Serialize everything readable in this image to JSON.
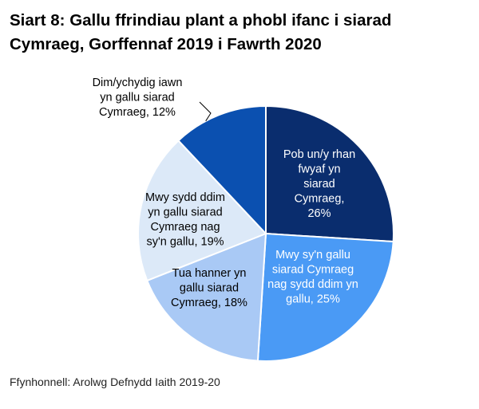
{
  "title_lines": [
    "Siart 8: Gallu ffrindiau plant a phobl ifanc i siarad",
    "Cymraeg, Gorffennaf 2019 i Fawrth 2020"
  ],
  "source": "Ffynhonnell: Arolwg Defnydd Iaith 2019-20",
  "chart_data": {
    "type": "pie",
    "title": "Siart 8: Gallu ffrindiau plant a phobl ifanc i siarad Cymraeg, Gorffennaf 2019 i Fawrth 2020",
    "slices": [
      {
        "name": "Pob un/y rhan fwyaf yn siarad Cymraeg",
        "value": 26,
        "color": "#0a2d6e",
        "label_lines": [
          "Pob un/y rhan",
          "fwyaf yn",
          "siarad",
          "Cymraeg,",
          "26%"
        ],
        "label_color": "#ffffff"
      },
      {
        "name": "Mwy sy'n gallu siarad Cymraeg nag sydd ddim yn gallu",
        "value": 25,
        "color": "#4a9af5",
        "label_lines": [
          "Mwy sy'n gallu",
          "siarad Cymraeg",
          "nag sydd ddim yn",
          "gallu, 25%"
        ],
        "label_color": "#ffffff"
      },
      {
        "name": "Tua hanner yn gallu siarad Cymraeg",
        "value": 18,
        "color": "#a9c9f5",
        "label_lines": [
          "Tua hanner yn",
          "gallu siarad",
          "Cymraeg, 18%"
        ],
        "label_color": "#000000"
      },
      {
        "name": "Mwy sydd ddim yn gallu siarad Cymraeg nag sy'n gallu",
        "value": 19,
        "color": "#dce9f8",
        "label_lines": [
          "Mwy sydd ddim",
          "yn gallu siarad",
          "Cymraeg nag",
          "sy'n gallu, 19%"
        ],
        "label_color": "#000000"
      },
      {
        "name": "Dim/ychydig iawn yn gallu siarad Cymraeg",
        "value": 12,
        "color": "#0b50b0",
        "label_lines": [
          "Dim/ychydig iawn",
          "yn gallu siarad",
          "Cymraeg, 12%"
        ],
        "label_color": "#000000"
      }
    ]
  }
}
